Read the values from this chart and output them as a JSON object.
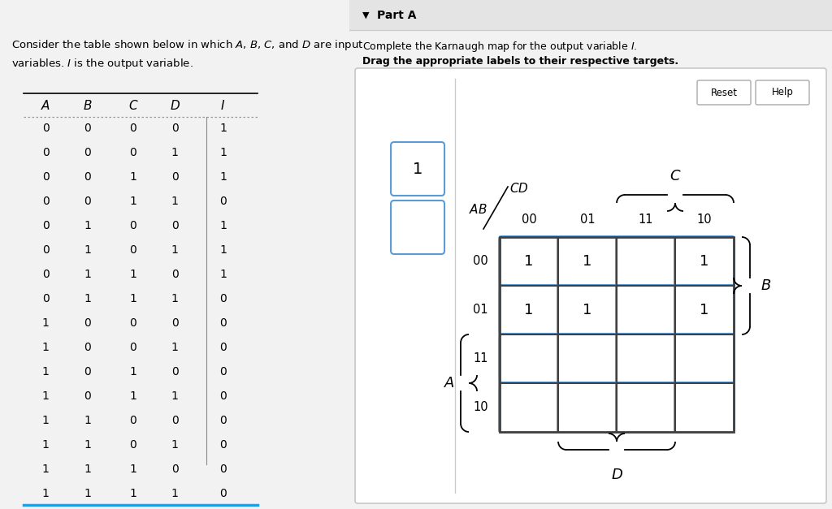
{
  "bg_left": "#daeef0",
  "bg_right": "#f2f2f2",
  "title_text": "Consider the table shown below in which $\\mathit{A}$, $\\mathit{B}$, $\\mathit{C}$, and $\\mathit{D}$ are input\nvariables. $\\mathit{I}$ is the output variable.",
  "table_headers": [
    "A",
    "B",
    "C",
    "D",
    "I"
  ],
  "table_data": [
    [
      0,
      0,
      0,
      0,
      1
    ],
    [
      0,
      0,
      0,
      1,
      1
    ],
    [
      0,
      0,
      1,
      0,
      1
    ],
    [
      0,
      0,
      1,
      1,
      0
    ],
    [
      0,
      1,
      0,
      0,
      1
    ],
    [
      0,
      1,
      0,
      1,
      1
    ],
    [
      0,
      1,
      1,
      0,
      1
    ],
    [
      0,
      1,
      1,
      1,
      0
    ],
    [
      1,
      0,
      0,
      0,
      0
    ],
    [
      1,
      0,
      0,
      1,
      0
    ],
    [
      1,
      0,
      1,
      0,
      0
    ],
    [
      1,
      0,
      1,
      1,
      0
    ],
    [
      1,
      1,
      0,
      0,
      0
    ],
    [
      1,
      1,
      0,
      1,
      0
    ],
    [
      1,
      1,
      1,
      0,
      0
    ],
    [
      1,
      1,
      1,
      1,
      0
    ]
  ],
  "kmap_values": [
    [
      "1",
      "1",
      "",
      "1"
    ],
    [
      "1",
      "1",
      "",
      "1"
    ],
    [
      "",
      "",
      "",
      ""
    ],
    [
      "",
      "",
      "",
      ""
    ]
  ],
  "kmap_row_labels": [
    "00",
    "01",
    "11",
    "10"
  ],
  "kmap_col_labels": [
    "00",
    "01",
    "11",
    "10"
  ],
  "cell_border_color": "#5b9bd5",
  "cell_fill_color": "#ffffff",
  "blue_line_color": "#00aaff",
  "drag_labels": [
    "1",
    ""
  ]
}
